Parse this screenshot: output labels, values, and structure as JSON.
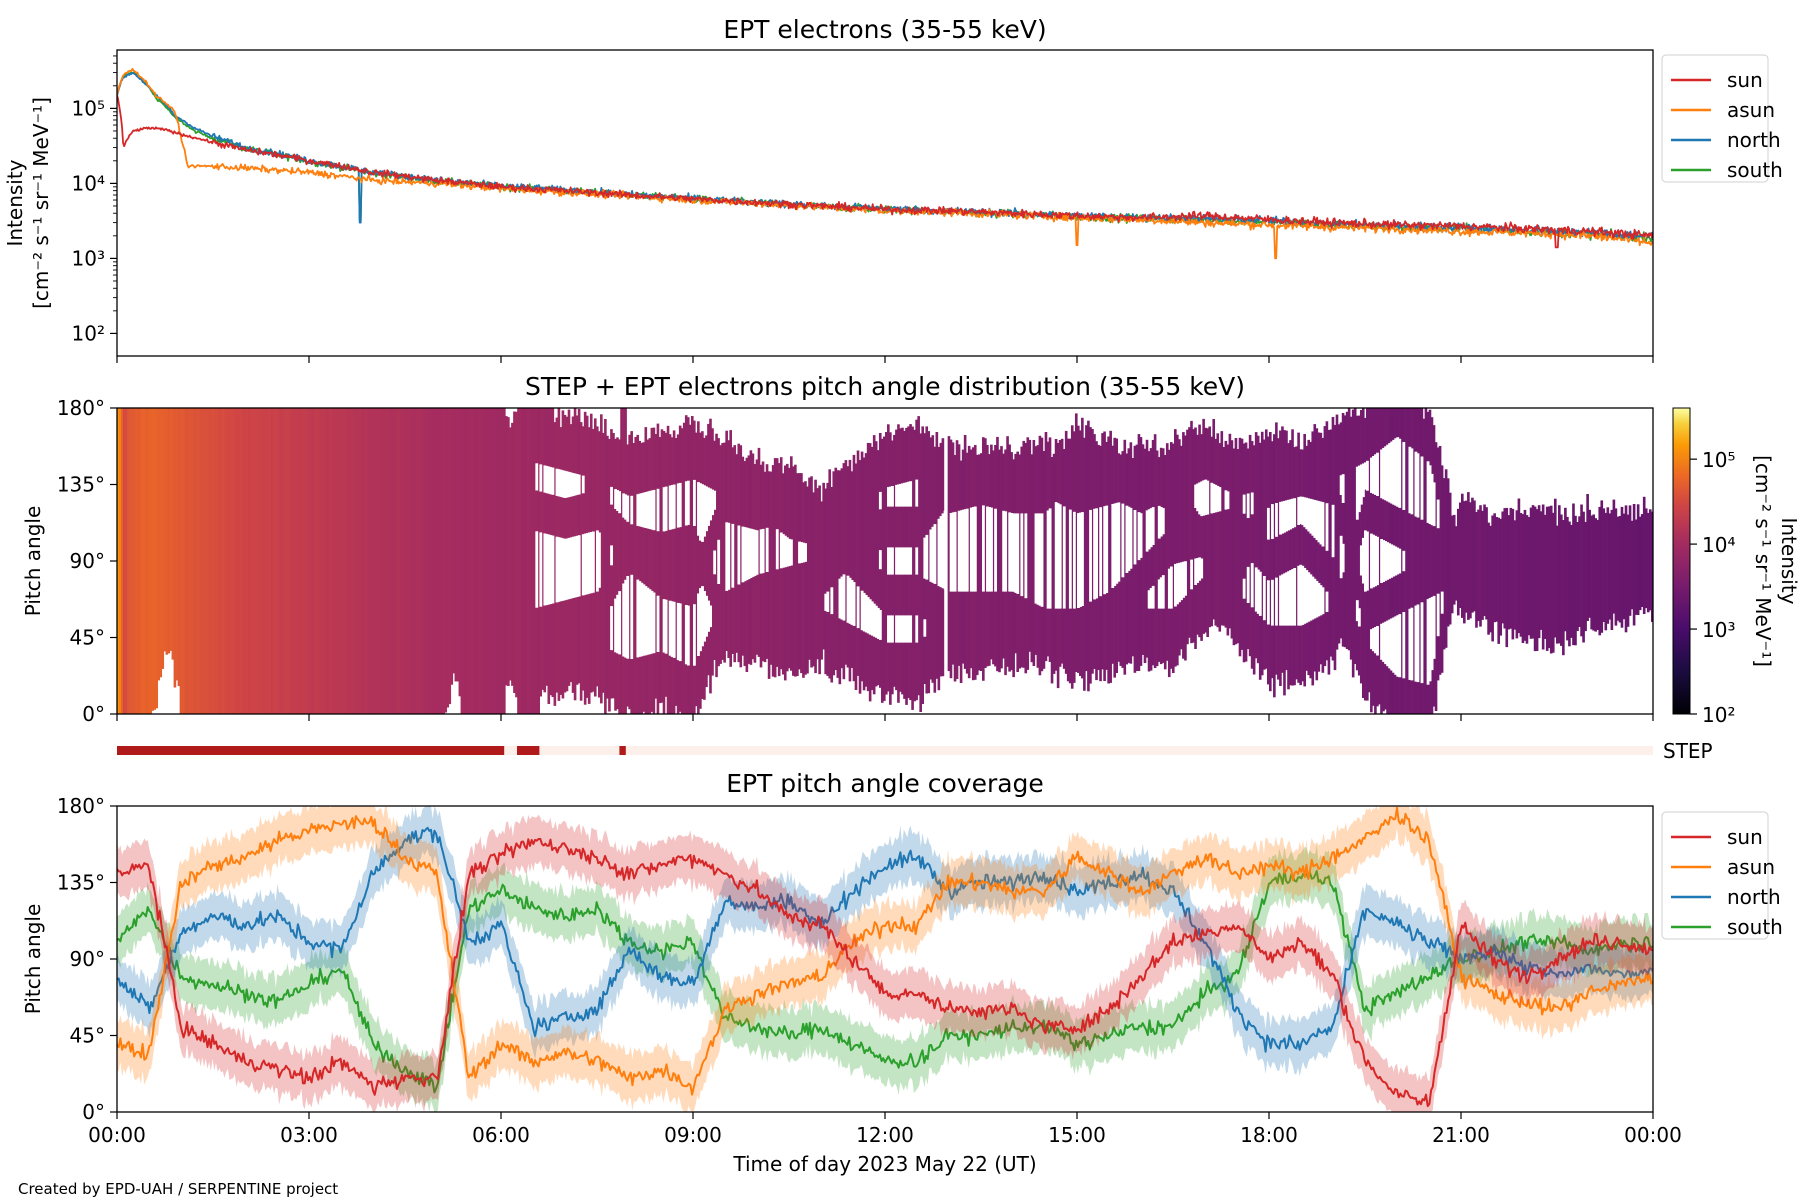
{
  "colors": {
    "sun": "#d62728",
    "asun": "#ff7f0e",
    "north": "#1f77b4",
    "south": "#2ca02c",
    "step_on": "#b11a1a",
    "step_off": "#fdf0ea"
  },
  "credit": "Created by EPD-UAH / SERPENTINE project",
  "chart_data": [
    {
      "type": "line",
      "id": "intensity",
      "title": "EPT electrons (35-55 keV)",
      "ylabel": [
        "Intensity",
        "[cm⁻² s⁻¹ sr⁻¹ MeV⁻¹]"
      ],
      "yscale": "log",
      "ylim": [
        50,
        600000
      ],
      "yticks": [
        "10²",
        "10³",
        "10⁴",
        "10⁵"
      ],
      "ytick_values": [
        100,
        1000,
        10000,
        100000
      ],
      "xlim_hours": [
        0,
        24
      ],
      "legend_position": "right",
      "series": [
        {
          "name": "sun",
          "hours": [
            0,
            0.1,
            0.25,
            0.5,
            0.75,
            1.0,
            1.5,
            2,
            3,
            4,
            5,
            6,
            7,
            8,
            9,
            10,
            11,
            12,
            13,
            14,
            15,
            16,
            17,
            18,
            19,
            20,
            21,
            22,
            23,
            24
          ],
          "values": [
            150000,
            30000,
            50000,
            55000,
            52000,
            45000,
            35000,
            28000,
            20000,
            14000,
            11000,
            9000,
            8000,
            7000,
            6200,
            5600,
            5000,
            4500,
            4300,
            4000,
            3700,
            3500,
            3700,
            3300,
            3000,
            2800,
            2700,
            2500,
            2300,
            2000
          ]
        },
        {
          "name": "asun",
          "hours": [
            0,
            0.1,
            0.25,
            0.4,
            0.6,
            0.9,
            1.0,
            1.1,
            1.5,
            2,
            3,
            4,
            5,
            6,
            7,
            8,
            9,
            10,
            11,
            12,
            13,
            14,
            15,
            16,
            17,
            18,
            19,
            20,
            21,
            22,
            23,
            24
          ],
          "values": [
            150000,
            280000,
            330000,
            250000,
            150000,
            90000,
            40000,
            17000,
            17000,
            16000,
            14000,
            11000,
            10000,
            8500,
            7600,
            6800,
            6000,
            5400,
            4800,
            4300,
            4100,
            3800,
            3500,
            3300,
            3000,
            2800,
            2600,
            2500,
            2300,
            2200,
            2000,
            1600
          ]
        },
        {
          "name": "north",
          "hours": [
            0,
            0.1,
            0.25,
            0.4,
            0.6,
            0.9,
            1.2,
            1.5,
            2,
            3,
            4,
            5,
            6,
            7,
            8,
            9,
            10,
            11,
            12,
            13,
            14,
            15,
            16,
            17,
            18,
            19,
            20,
            21,
            22,
            23,
            24
          ],
          "values": [
            150000,
            260000,
            300000,
            230000,
            150000,
            80000,
            55000,
            42000,
            30000,
            20000,
            14000,
            11000,
            9200,
            8100,
            7100,
            6300,
            5600,
            5000,
            4600,
            4300,
            4000,
            3700,
            3500,
            3400,
            3200,
            2900,
            2700,
            2600,
            2400,
            2200,
            2000
          ]
        },
        {
          "name": "south",
          "hours": [
            0,
            0.1,
            0.25,
            0.4,
            0.6,
            0.9,
            1.2,
            1.5,
            2,
            3,
            4,
            5,
            6,
            7,
            8,
            9,
            10,
            11,
            12,
            13,
            14,
            15,
            16,
            17,
            18,
            19,
            20,
            21,
            22,
            23,
            24
          ],
          "values": [
            150000,
            270000,
            310000,
            240000,
            140000,
            75000,
            50000,
            40000,
            29000,
            19500,
            13500,
            10800,
            9000,
            8000,
            7000,
            6200,
            5500,
            4900,
            4500,
            4200,
            3900,
            3600,
            3400,
            3300,
            3100,
            2800,
            2600,
            2500,
            2300,
            2100,
            1900
          ]
        }
      ],
      "spikes": [
        {
          "series": "north",
          "hour": 3.8,
          "value": 3000
        },
        {
          "series": "south",
          "hour": 3.8,
          "value": 3200
        },
        {
          "series": "asun",
          "hour": 15.0,
          "value": 1500
        },
        {
          "series": "asun",
          "hour": 18.1,
          "value": 1000
        },
        {
          "series": "sun",
          "hour": 22.5,
          "value": 1400
        }
      ]
    },
    {
      "type": "heatmap",
      "id": "pad",
      "title": "STEP + EPT electrons pitch angle distribution (35-55 keV)",
      "ylabel": "Pitch angle",
      "ylim": [
        0,
        180
      ],
      "yticks": [
        "0°",
        "45°",
        "90°",
        "135°",
        "180°"
      ],
      "ytick_values": [
        0,
        45,
        90,
        135,
        180
      ],
      "xlim_hours": [
        0,
        24
      ],
      "colorbar": {
        "label": [
          "Intensity",
          "[cm⁻² s⁻¹ sr⁻¹ MeV⁻¹]"
        ],
        "scale": "log",
        "range": [
          100,
          400000
        ],
        "ticks": [
          "10²",
          "10³",
          "10⁴",
          "10⁵"
        ],
        "tick_values": [
          100,
          1000,
          10000,
          100000
        ],
        "colormap": "inferno"
      }
    },
    {
      "type": "bar",
      "id": "step",
      "label": "STEP",
      "intervals_hours": [
        [
          0,
          6.05
        ],
        [
          6.25,
          6.6
        ],
        [
          7.85,
          7.95
        ]
      ]
    },
    {
      "type": "line",
      "id": "coverage",
      "title": "EPT pitch angle coverage",
      "ylabel": "Pitch angle",
      "xlabel": "Time of day 2023 May 22 (UT)",
      "ylim": [
        0,
        180
      ],
      "yticks": [
        "0°",
        "45°",
        "90°",
        "135°",
        "180°"
      ],
      "ytick_values": [
        0,
        45,
        90,
        135,
        180
      ],
      "xlim_hours": [
        0,
        24
      ],
      "xticks": [
        "00:00",
        "03:00",
        "06:00",
        "09:00",
        "12:00",
        "15:00",
        "18:00",
        "21:00",
        "00:00"
      ],
      "xtick_hours": [
        0,
        3,
        6,
        9,
        12,
        15,
        18,
        21,
        24
      ],
      "legend_position": "right",
      "series": [
        {
          "name": "sun",
          "hours": [
            0,
            0.5,
            1,
            1.5,
            2,
            2.5,
            3,
            3.5,
            4,
            4.5,
            5,
            5.5,
            6,
            6.5,
            7,
            7.5,
            8,
            8.5,
            9,
            9.5,
            10,
            10.5,
            11,
            11.5,
            12,
            12.5,
            13,
            13.5,
            14,
            14.5,
            15,
            15.5,
            16,
            16.5,
            17,
            17.5,
            18,
            18.5,
            19,
            19.5,
            20,
            20.5,
            21,
            21.5,
            22,
            22.5,
            23,
            23.5,
            24
          ],
          "values": [
            140,
            145,
            50,
            40,
            30,
            25,
            20,
            30,
            15,
            20,
            20,
            140,
            150,
            160,
            155,
            150,
            140,
            145,
            150,
            140,
            130,
            115,
            110,
            90,
            70,
            70,
            60,
            60,
            60,
            50,
            50,
            60,
            80,
            100,
            105,
            110,
            90,
            100,
            80,
            30,
            10,
            5,
            110,
            90,
            80,
            90,
            100,
            100,
            95
          ]
        },
        {
          "name": "asun",
          "hours": [
            0,
            0.5,
            1,
            1.5,
            2,
            2.5,
            3,
            3.5,
            4,
            4.5,
            5,
            5.5,
            6,
            6.5,
            7,
            7.5,
            8,
            8.5,
            9,
            9.5,
            10,
            10.5,
            11,
            11.5,
            12,
            12.5,
            13,
            13.5,
            14,
            14.5,
            15,
            15.5,
            16,
            16.5,
            17,
            17.5,
            18,
            18.5,
            19,
            19.5,
            20,
            20.5,
            21,
            21.5,
            22,
            22.5,
            23,
            23.5,
            24
          ],
          "values": [
            40,
            35,
            135,
            145,
            150,
            160,
            165,
            170,
            170,
            150,
            140,
            20,
            40,
            30,
            35,
            30,
            20,
            25,
            15,
            60,
            70,
            75,
            80,
            100,
            110,
            110,
            135,
            135,
            130,
            130,
            150,
            140,
            130,
            140,
            150,
            140,
            145,
            140,
            150,
            160,
            175,
            160,
            80,
            70,
            65,
            60,
            70,
            75,
            80
          ]
        },
        {
          "name": "north",
          "hours": [
            0,
            0.5,
            1,
            1.5,
            2,
            2.5,
            3,
            3.5,
            4,
            4.5,
            5,
            5.5,
            6,
            6.5,
            7,
            7.5,
            8,
            8.5,
            9,
            9.5,
            10,
            10.5,
            11,
            11.5,
            12,
            12.5,
            13,
            13.5,
            14,
            14.5,
            15,
            15.5,
            16,
            16.5,
            17,
            17.5,
            18,
            18.5,
            19,
            19.5,
            20,
            20.5,
            21,
            21.5,
            22,
            22.5,
            23,
            23.5,
            24
          ],
          "values": [
            80,
            60,
            105,
            115,
            110,
            115,
            100,
            95,
            140,
            160,
            165,
            100,
            110,
            50,
            55,
            60,
            95,
            80,
            75,
            125,
            120,
            125,
            110,
            130,
            145,
            150,
            130,
            135,
            135,
            140,
            130,
            135,
            140,
            130,
            100,
            60,
            40,
            40,
            50,
            120,
            110,
            100,
            90,
            95,
            85,
            80,
            85,
            80,
            85
          ]
        },
        {
          "name": "south",
          "hours": [
            0,
            0.5,
            1,
            1.5,
            2,
            2.5,
            3,
            3.5,
            4,
            4.5,
            5,
            5.5,
            6,
            6.5,
            7,
            7.5,
            8,
            8.5,
            9,
            9.5,
            10,
            10.5,
            11,
            11.5,
            12,
            12.5,
            13,
            13.5,
            14,
            14.5,
            15,
            15.5,
            16,
            16.5,
            17,
            17.5,
            18,
            18.5,
            19,
            19.5,
            20,
            20.5,
            21,
            21.5,
            22,
            22.5,
            23,
            23.5,
            24
          ],
          "values": [
            100,
            120,
            80,
            75,
            70,
            65,
            75,
            85,
            40,
            25,
            15,
            120,
            130,
            120,
            115,
            120,
            100,
            95,
            100,
            55,
            50,
            45,
            50,
            40,
            30,
            30,
            45,
            45,
            50,
            50,
            40,
            45,
            50,
            50,
            70,
            80,
            135,
            140,
            135,
            60,
            70,
            80,
            90,
            95,
            100,
            100,
            95,
            100,
            100
          ]
        }
      ]
    }
  ]
}
